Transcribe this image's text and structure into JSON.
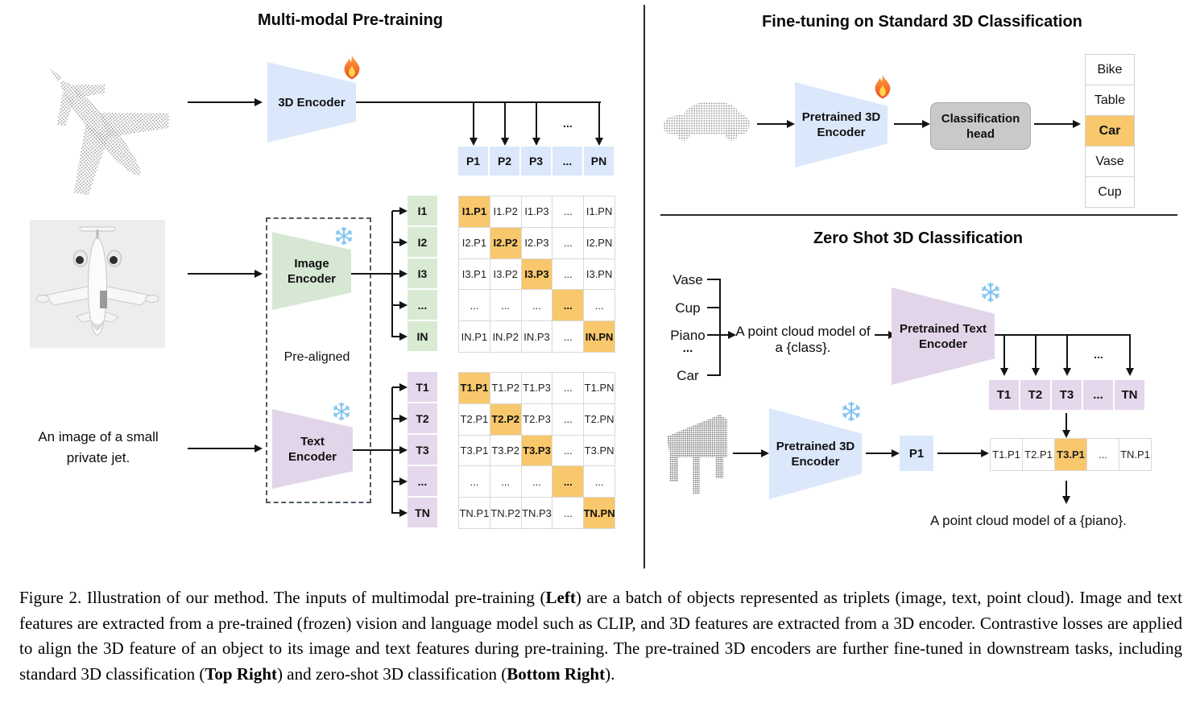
{
  "left": {
    "title": "Multi-modal Pre-training",
    "encoder3d_label": "3D Encoder",
    "image_encoder": {
      "line1": "Image",
      "line2": "Encoder"
    },
    "text_encoder": {
      "line1": "Text",
      "line2": "Encoder"
    },
    "prealigned_label": "Pre-aligned",
    "text_input": {
      "line1": "An image of a small",
      "line2": "private jet."
    },
    "dots_above_p4": "...",
    "p_row": [
      {
        "t": "P1"
      },
      {
        "t": "P2"
      },
      {
        "t": "P3"
      },
      {
        "t": "..."
      },
      {
        "t": "PN"
      }
    ],
    "i_col": [
      {
        "t": "I1"
      },
      {
        "t": "I2"
      },
      {
        "t": "I3"
      },
      {
        "t": "..."
      },
      {
        "t": "IN"
      }
    ],
    "t_col": [
      {
        "t": "T1"
      },
      {
        "t": "T2"
      },
      {
        "t": "T3"
      },
      {
        "t": "..."
      },
      {
        "t": "TN"
      }
    ],
    "image_matrix": [
      {
        "t": "I1.P1",
        "hl": true
      },
      {
        "t": "I1.P2"
      },
      {
        "t": "I1.P3"
      },
      {
        "t": "..."
      },
      {
        "t": "I1.PN"
      },
      {
        "t": "I2.P1"
      },
      {
        "t": "I2.P2",
        "hl": true
      },
      {
        "t": "I2.P3"
      },
      {
        "t": "..."
      },
      {
        "t": "I2.PN"
      },
      {
        "t": "I3.P1"
      },
      {
        "t": "I3.P2"
      },
      {
        "t": "I3.P3",
        "hl": true
      },
      {
        "t": "..."
      },
      {
        "t": "I3.PN"
      },
      {
        "t": "..."
      },
      {
        "t": "..."
      },
      {
        "t": "..."
      },
      {
        "t": "...",
        "hl": true
      },
      {
        "t": "..."
      },
      {
        "t": "IN.P1"
      },
      {
        "t": "IN.P2"
      },
      {
        "t": "IN.P3"
      },
      {
        "t": "..."
      },
      {
        "t": "IN.PN",
        "hl": true
      }
    ],
    "text_matrix": [
      {
        "t": "T1.P1",
        "hl": true
      },
      {
        "t": "T1.P2"
      },
      {
        "t": "T1.P3"
      },
      {
        "t": "..."
      },
      {
        "t": "T1.PN"
      },
      {
        "t": "T2.P1"
      },
      {
        "t": "T2.P2",
        "hl": true
      },
      {
        "t": "T2.P3"
      },
      {
        "t": "..."
      },
      {
        "t": "T2.PN"
      },
      {
        "t": "T3.P1"
      },
      {
        "t": "T3.P2"
      },
      {
        "t": "T3.P3",
        "hl": true
      },
      {
        "t": "..."
      },
      {
        "t": "T3.PN"
      },
      {
        "t": "..."
      },
      {
        "t": "..."
      },
      {
        "t": "..."
      },
      {
        "t": "...",
        "hl": true
      },
      {
        "t": "..."
      },
      {
        "t": "TN.P1"
      },
      {
        "t": "TN.P2"
      },
      {
        "t": "TN.P3"
      },
      {
        "t": "..."
      },
      {
        "t": "TN.PN",
        "hl": true
      }
    ]
  },
  "top_right": {
    "title": "Fine-tuning on Standard 3D Classification",
    "encoder": {
      "line1": "Pretrained 3D",
      "line2": "Encoder"
    },
    "head": {
      "line1": "Classification",
      "line2": "head"
    },
    "classes": [
      {
        "t": "Bike"
      },
      {
        "t": "Table"
      },
      {
        "t": "Car",
        "hl": true
      },
      {
        "t": "Vase"
      },
      {
        "t": "Cup"
      }
    ]
  },
  "bottom_right": {
    "title": "Zero Shot 3D Classification",
    "class_labels": [
      {
        "t": "Vase"
      },
      {
        "t": "Cup"
      },
      {
        "t": "Piano"
      },
      {
        "t": "..."
      },
      {
        "t": "Car"
      }
    ],
    "prompt": {
      "line1": "A point cloud model of",
      "line2": "a {class}."
    },
    "text_encoder": {
      "line1": "Pretrained Text",
      "line2": "Encoder"
    },
    "encoder3d": {
      "line1": "Pretrained 3D",
      "line2": "Encoder"
    },
    "dots_above_tn": "...",
    "t_row": [
      {
        "t": "T1"
      },
      {
        "t": "T2"
      },
      {
        "t": "T3"
      },
      {
        "t": "..."
      },
      {
        "t": "TN"
      }
    ],
    "p1_label": "P1",
    "score_row": [
      {
        "t": "T1.P1"
      },
      {
        "t": "T2.P1"
      },
      {
        "t": "T3.P1",
        "hl": true
      },
      {
        "t": "..."
      },
      {
        "t": "TN.P1"
      }
    ],
    "result_text": "A point cloud model of a {piano}."
  },
  "caption": {
    "segments": [
      {
        "t": "Figure 2. Illustration of our method. The inputs of multimodal pre-training ("
      },
      {
        "t": "Left",
        "b": true
      },
      {
        "t": ") are a batch of objects represented as triplets (image, text, point cloud).  Image and text features are extracted from a pre-trained (frozen) vision and language model such as CLIP, and 3D features are extracted from a 3D encoder.  Contrastive losses are applied to align the 3D feature of an object to its image and text features during pre-training.  The pre-trained 3D encoders are further fine-tuned in downstream tasks, including standard 3D classification ("
      },
      {
        "t": "Top Right",
        "b": true
      },
      {
        "t": ") and zero-shot 3D classification ("
      },
      {
        "t": "Bottom Right",
        "b": true
      },
      {
        "t": ")."
      }
    ]
  },
  "colors": {
    "encoder_blue": "#dbe8fb",
    "encoder_green": "#d6e8d4",
    "encoder_purple": "#e2d5e9",
    "highlight_orange": "#f9c86c",
    "head_gray": "#c9c9c9"
  }
}
